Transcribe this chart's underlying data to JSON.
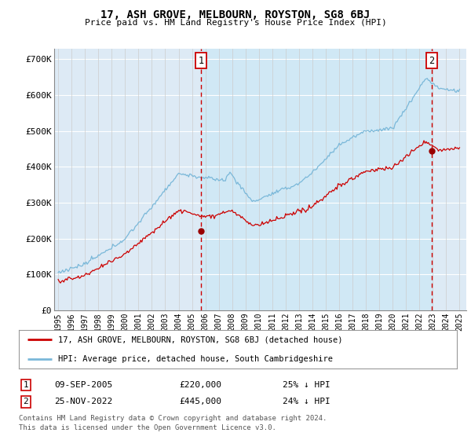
{
  "title": "17, ASH GROVE, MELBOURN, ROYSTON, SG8 6BJ",
  "subtitle": "Price paid vs. HM Land Registry's House Price Index (HPI)",
  "ylabel_ticks": [
    "£0",
    "£100K",
    "£200K",
    "£300K",
    "£400K",
    "£500K",
    "£600K",
    "£700K"
  ],
  "ytick_values": [
    0,
    100000,
    200000,
    300000,
    400000,
    500000,
    600000,
    700000
  ],
  "ylim": [
    0,
    730000
  ],
  "xlim_start": 1994.7,
  "xlim_end": 2025.5,
  "xtick_years": [
    1995,
    1996,
    1997,
    1998,
    1999,
    2000,
    2001,
    2002,
    2003,
    2004,
    2005,
    2006,
    2007,
    2008,
    2009,
    2010,
    2011,
    2012,
    2013,
    2014,
    2015,
    2016,
    2017,
    2018,
    2019,
    2020,
    2021,
    2022,
    2023,
    2024,
    2025
  ],
  "hpi_color": "#7ab8d9",
  "hpi_fill_color": "#d0e8f5",
  "price_color": "#cc0000",
  "vline_color": "#cc0000",
  "marker_color": "#990000",
  "bg_color": "#ddeaf5",
  "grid_color": "#ffffff",
  "legend_border_color": "#999999",
  "sale1_year": 2005.69,
  "sale1_price": 220000,
  "sale2_year": 2022.9,
  "sale2_price": 445000,
  "sale1_date": "09-SEP-2005",
  "sale1_pct": "25% ↓ HPI",
  "sale2_date": "25-NOV-2022",
  "sale2_pct": "24% ↓ HPI",
  "legend1": "17, ASH GROVE, MELBOURN, ROYSTON, SG8 6BJ (detached house)",
  "legend2": "HPI: Average price, detached house, South Cambridgeshire",
  "footnote1": "Contains HM Land Registry data © Crown copyright and database right 2024.",
  "footnote2": "This data is licensed under the Open Government Licence v3.0."
}
